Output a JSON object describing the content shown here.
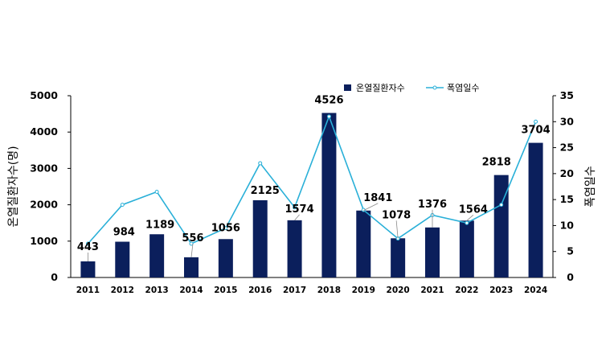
{
  "chart_data": {
    "type": "bar+line",
    "title": "",
    "categories": [
      "2011",
      "2012",
      "2013",
      "2014",
      "2015",
      "2016",
      "2017",
      "2018",
      "2019",
      "2020",
      "2021",
      "2022",
      "2023",
      "2024"
    ],
    "series": [
      {
        "name": "온열질환자수",
        "type": "bar",
        "axis": "left",
        "color": "#0b1f5c",
        "values": [
          443,
          984,
          1189,
          556,
          1056,
          2125,
          1574,
          4526,
          1841,
          1078,
          1376,
          1564,
          2818,
          3704
        ],
        "data_labels": [
          "443",
          "984",
          "1189",
          "556",
          "1056",
          "2125",
          "1574",
          "4526",
          "1841",
          "1078",
          "1376",
          "1564",
          "2818",
          "3704"
        ]
      },
      {
        "name": "폭염일수",
        "type": "line",
        "axis": "right",
        "color": "#2ab0d8",
        "values": [
          6.5,
          14,
          16.5,
          6.5,
          9.5,
          22,
          13.5,
          31,
          13,
          7.5,
          12,
          10.5,
          14,
          30
        ]
      }
    ],
    "ylabel_left": "온열질환자수(명)",
    "ylabel_right": "폭염일수",
    "ylim_left": [
      0,
      5000
    ],
    "yticks_left": [
      "0",
      "1000",
      "2000",
      "3000",
      "4000",
      "5000"
    ],
    "ylim_right": [
      0,
      35
    ],
    "yticks_right": [
      "0",
      "5",
      "10",
      "15",
      "20",
      "25",
      "30",
      "35"
    ],
    "grid": false,
    "legend_position": "top-right"
  }
}
